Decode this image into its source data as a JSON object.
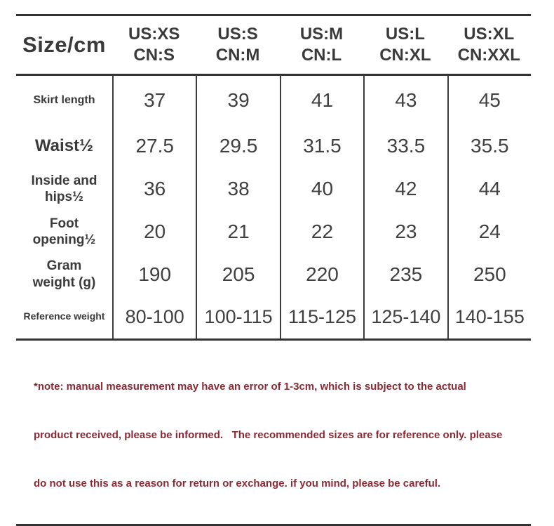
{
  "table": {
    "header": {
      "label": "Size/cm",
      "sizes": [
        {
          "us": "US:XS",
          "cn": "CN:S"
        },
        {
          "us": "US:S",
          "cn": "CN:M"
        },
        {
          "us": "US:M",
          "cn": "CN:L"
        },
        {
          "us": "US:L",
          "cn": "CN:XL"
        },
        {
          "us": "US:XL",
          "cn": "CN:XXL"
        }
      ]
    },
    "rows": [
      {
        "label_lines": [
          "Skirt length"
        ],
        "values": [
          "37",
          "39",
          "41",
          "43",
          "45"
        ]
      },
      {
        "label_lines": [
          "Waist½"
        ],
        "values": [
          "27.5",
          "29.5",
          "31.5",
          "33.5",
          "35.5"
        ]
      },
      {
        "label_lines": [
          "Inside and",
          "hips½"
        ],
        "values": [
          "36",
          "38",
          "40",
          "42",
          "44"
        ]
      },
      {
        "label_lines": [
          "Foot",
          "opening½"
        ],
        "values": [
          "20",
          "21",
          "22",
          "23",
          "24"
        ]
      },
      {
        "label_lines": [
          "Gram",
          "weight (g)"
        ],
        "values": [
          "190",
          "205",
          "220",
          "235",
          "250"
        ]
      },
      {
        "label_lines": [
          "Reference weight"
        ],
        "values": [
          "80-100",
          "100-115",
          "115-125",
          "125-140",
          "140-155"
        ]
      }
    ]
  },
  "note": {
    "lines": [
      "*note: manual measurement may have an error of 1-3cm, which is subject to the actual",
      "product received, please be informed.   The recommended sizes are for reference only. please",
      "do not use this as a reason for return or exchange. if you mind, please be careful."
    ]
  },
  "colors": {
    "background": "#ffffff",
    "rule": "#333333",
    "text": "#3a3a3a",
    "value_text": "#404040",
    "note_text": "#8b2a34"
  },
  "chart_data": {
    "type": "table",
    "title": "Size/cm",
    "columns": [
      "Size/cm",
      "US:XS CN:S",
      "US:S CN:M",
      "US:M CN:L",
      "US:L CN:XL",
      "US:XL CN:XXL"
    ],
    "rows": [
      [
        "Skirt length",
        37,
        39,
        41,
        43,
        45
      ],
      [
        "Waist½",
        27.5,
        29.5,
        31.5,
        33.5,
        35.5
      ],
      [
        "Inside and hips½",
        36,
        38,
        40,
        42,
        44
      ],
      [
        "Foot opening½",
        20,
        21,
        22,
        23,
        24
      ],
      [
        "Gram weight (g)",
        190,
        205,
        220,
        235,
        250
      ],
      [
        "Reference weight",
        "80-100",
        "100-115",
        "115-125",
        "125-140",
        "140-155"
      ]
    ],
    "note": "*note: manual measurement may have an error of 1-3cm, which is subject to the actual product received, please be informed.   The recommended sizes are for reference only. please do not use this as a reason for return or exchange. if you mind, please be careful."
  }
}
